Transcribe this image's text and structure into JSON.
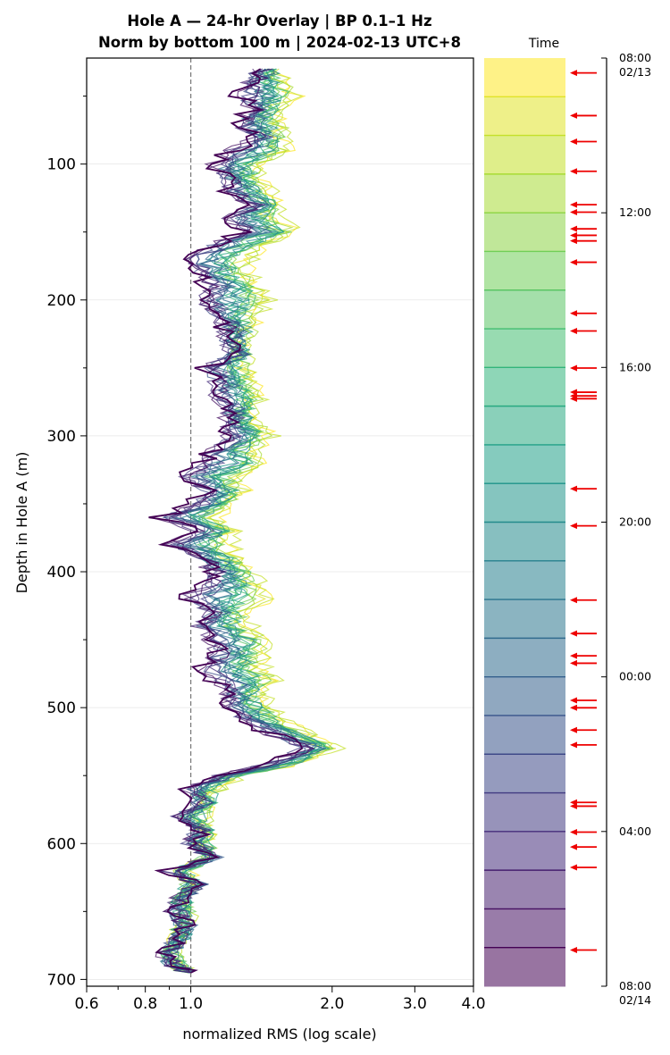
{
  "chart_data": {
    "type": "line",
    "title_line1": "Hole A — 24-hr Overlay  |  BP 0.1–1 Hz",
    "title_line2": "Norm by bottom 100 m  |  2024-02-13 UTC+8",
    "xlabel": "normalized RMS  (log scale)",
    "ylabel": "Depth in Hole A (m)",
    "x_scale": "log",
    "xlim": [
      0.6,
      4.0
    ],
    "ylim": [
      705,
      22
    ],
    "y_inverted": true,
    "x_ticks": [
      0.6,
      0.8,
      1.0,
      2.0,
      3.0,
      4.0
    ],
    "x_tick_labels": [
      "0.6",
      "0.8",
      "1.0",
      "2.0",
      "3.0",
      "4.0"
    ],
    "y_ticks": [
      100,
      200,
      300,
      400,
      500,
      600,
      700
    ],
    "y_tick_labels": [
      "100",
      "200",
      "300",
      "400",
      "500",
      "600",
      "700"
    ],
    "grid": "horizontal",
    "reference_line_x": 1.0,
    "colormap": "viridis",
    "series_count": 24,
    "depth_profile": {
      "depths": [
        30,
        40,
        50,
        60,
        70,
        80,
        90,
        100,
        110,
        120,
        130,
        140,
        150,
        160,
        170,
        180,
        190,
        200,
        210,
        220,
        230,
        240,
        250,
        260,
        270,
        280,
        290,
        300,
        310,
        320,
        330,
        340,
        350,
        360,
        370,
        380,
        390,
        400,
        410,
        420,
        430,
        440,
        450,
        460,
        470,
        480,
        490,
        500,
        510,
        520,
        530,
        540,
        550,
        560,
        570,
        580,
        590,
        600,
        610,
        620,
        630,
        640,
        650,
        660,
        670,
        680,
        690,
        695
      ],
      "dark_series": [
        1.42,
        1.34,
        1.28,
        1.35,
        1.25,
        1.39,
        1.22,
        1.12,
        1.18,
        1.21,
        1.35,
        1.22,
        1.3,
        1.1,
        0.98,
        1.02,
        1.1,
        1.05,
        1.12,
        1.18,
        1.2,
        1.25,
        1.08,
        1.12,
        1.14,
        1.22,
        1.2,
        1.2,
        1.1,
        1.06,
        0.96,
        1.08,
        1.02,
        0.85,
        1.05,
        0.9,
        1.05,
        1.12,
        1.08,
        0.95,
        1.1,
        1.02,
        1.1,
        1.15,
        1.05,
        1.12,
        1.2,
        1.22,
        1.3,
        1.5,
        1.75,
        1.5,
        1.15,
        0.98,
        1.05,
        0.92,
        1.05,
        1.0,
        1.12,
        0.9,
        1.05,
        0.95,
        0.92,
        0.98,
        0.95,
        0.88,
        0.92,
        1.0
      ],
      "light_series": [
        1.5,
        1.6,
        1.75,
        1.55,
        1.62,
        1.58,
        1.68,
        1.45,
        1.42,
        1.5,
        1.58,
        1.55,
        1.72,
        1.48,
        1.4,
        1.38,
        1.45,
        1.52,
        1.42,
        1.38,
        1.33,
        1.3,
        1.36,
        1.4,
        1.45,
        1.35,
        1.4,
        1.52,
        1.42,
        1.5,
        1.3,
        1.32,
        1.25,
        1.2,
        1.24,
        1.27,
        1.28,
        1.38,
        1.45,
        1.55,
        1.32,
        1.4,
        1.5,
        1.45,
        1.5,
        1.58,
        1.45,
        1.52,
        1.62,
        1.85,
        2.05,
        1.8,
        1.28,
        1.2,
        1.1,
        1.12,
        1.08,
        1.1,
        1.08,
        1.0,
        0.98,
        0.95,
        1.0,
        0.96,
        0.94,
        0.92,
        0.95,
        0.98
      ]
    },
    "colorbar": {
      "label": "Time",
      "bands": 24,
      "tick_labels": [
        "08:00\n02/13",
        "12:00",
        "16:00",
        "20:00",
        "00:00",
        "04:00",
        "08:00\n02/14"
      ],
      "tick_fractions": [
        0,
        0.1667,
        0.3333,
        0.5,
        0.6667,
        0.8333,
        1
      ],
      "event_arrow_fractions": [
        0.016,
        0.062,
        0.09,
        0.122,
        0.158,
        0.166,
        0.184,
        0.191,
        0.197,
        0.22,
        0.275,
        0.294,
        0.334,
        0.36,
        0.364,
        0.367,
        0.464,
        0.504,
        0.584,
        0.62,
        0.644,
        0.652,
        0.692,
        0.7,
        0.724,
        0.74,
        0.802,
        0.806,
        0.834,
        0.85,
        0.872,
        0.961
      ]
    }
  }
}
